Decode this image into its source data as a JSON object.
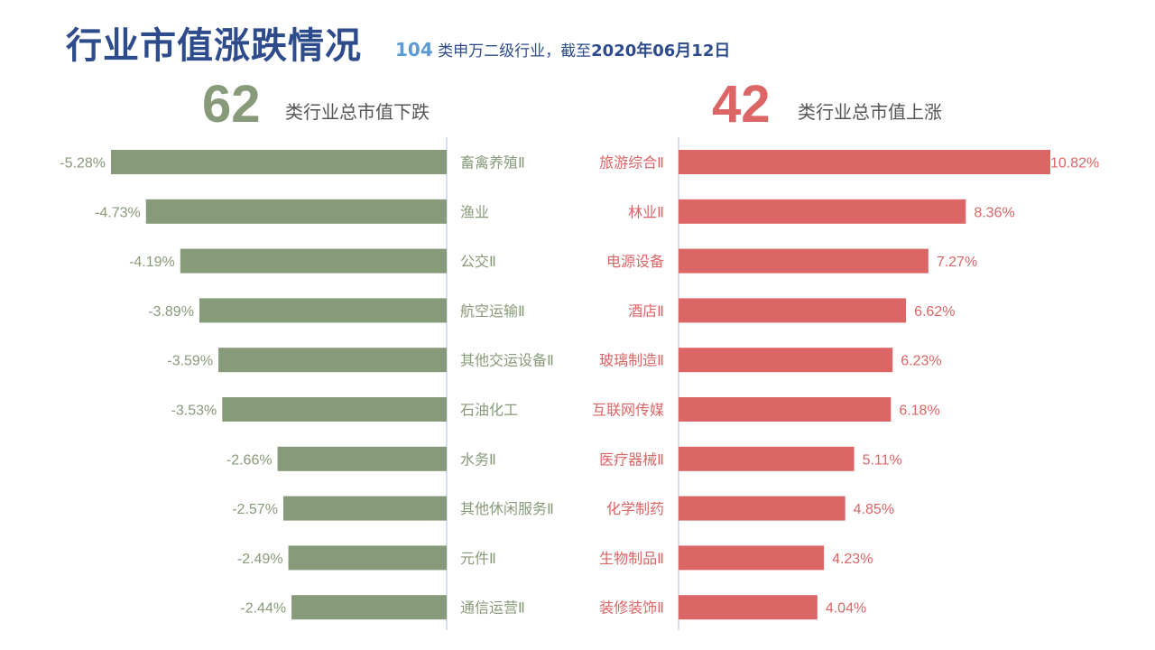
{
  "header": {
    "title": "行业市值涨跌情况",
    "subtitle_count": "104",
    "subtitle_text": " 类申万二级行业，截至",
    "subtitle_date": "2020年06月12日"
  },
  "summary": {
    "down_count": "62",
    "down_label": "类行业总市值下跌",
    "up_count": "42",
    "up_label": "类行业总市值上涨"
  },
  "colors": {
    "down": "#879a79",
    "up": "#dc6566",
    "title": "#2e4c8c",
    "accent": "#5b9bd5",
    "divider": "#c9d6ea"
  },
  "chart_data": [
    {
      "type": "bar",
      "title": "",
      "orientation": "horizontal",
      "categories": [
        "畜禽养殖Ⅱ",
        "渔业",
        "公交Ⅱ",
        "航空运输Ⅱ",
        "其他交运设备Ⅱ",
        "石油化工",
        "水务Ⅱ",
        "其他休闲服务Ⅱ",
        "元件Ⅱ",
        "通信运营Ⅱ"
      ],
      "values": [
        -5.28,
        -4.73,
        -4.19,
        -3.89,
        -3.59,
        -3.53,
        -2.66,
        -2.57,
        -2.49,
        -2.44
      ],
      "value_labels": [
        "-5.28%",
        "-4.73%",
        "-4.19%",
        "-3.89%",
        "-3.59%",
        "-3.53%",
        "-2.66%",
        "-2.57%",
        "-2.49%",
        "-2.44%"
      ],
      "unit": "%"
    },
    {
      "type": "bar",
      "title": "",
      "orientation": "horizontal",
      "categories": [
        "旅游综合Ⅱ",
        "林业Ⅱ",
        "电源设备",
        "酒店Ⅱ",
        "玻璃制造Ⅱ",
        "互联网传媒",
        "医疗器械Ⅱ",
        "化学制药",
        "生物制品Ⅱ",
        "装修装饰Ⅱ"
      ],
      "values": [
        10.82,
        8.36,
        7.27,
        6.62,
        6.23,
        6.18,
        5.11,
        4.85,
        4.23,
        4.04
      ],
      "value_labels": [
        "10.82%",
        "8.36%",
        "7.27%",
        "6.62%",
        "6.23%",
        "6.18%",
        "5.11%",
        "4.85%",
        "4.23%",
        "4.04%"
      ],
      "unit": "%"
    }
  ]
}
